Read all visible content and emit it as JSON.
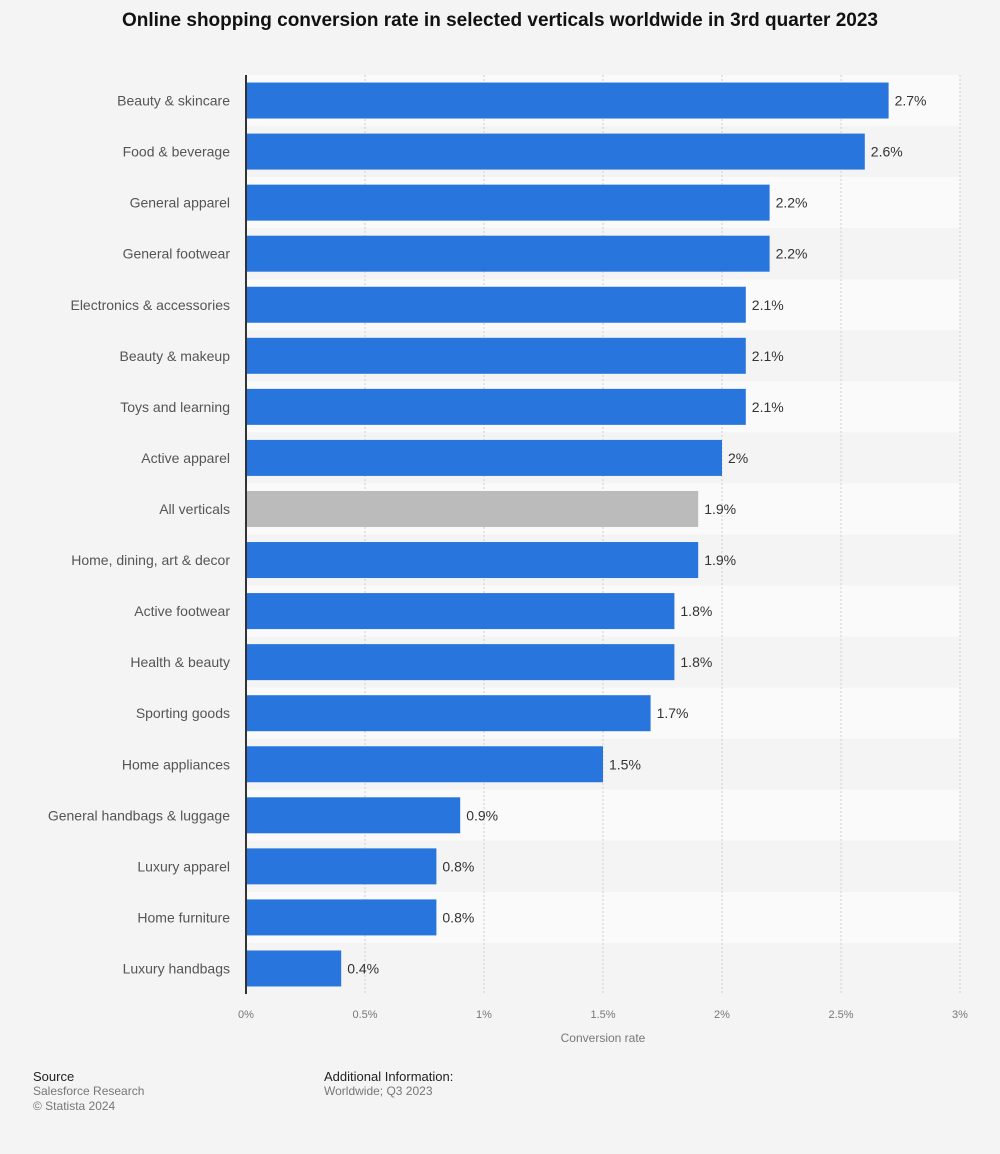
{
  "chart_data": {
    "type": "bar",
    "orientation": "horizontal",
    "title": "Online shopping conversion rate in selected verticals worldwide in 3rd quarter 2023",
    "xlabel": "Conversion rate",
    "ylabel": "",
    "xlim": [
      0,
      3
    ],
    "xticks": [
      0,
      0.5,
      1,
      1.5,
      2,
      2.5,
      3
    ],
    "xtick_labels": [
      "0%",
      "0.5%",
      "1%",
      "1.5%",
      "2%",
      "2.5%",
      "3%"
    ],
    "grid": true,
    "categories": [
      "Beauty & skincare",
      "Food & beverage",
      "General apparel",
      "General footwear",
      "Electronics & accessories",
      "Beauty & makeup",
      "Toys and learning",
      "Active apparel",
      "All verticals",
      "Home, dining, art & decor",
      "Active footwear",
      "Health & beauty",
      "Sporting goods",
      "Home appliances",
      "General handbags & luggage",
      "Luxury apparel",
      "Home furniture",
      "Luxury handbags"
    ],
    "values": [
      2.7,
      2.6,
      2.2,
      2.2,
      2.1,
      2.1,
      2.1,
      2,
      1.9,
      1.9,
      1.8,
      1.8,
      1.7,
      1.5,
      0.9,
      0.8,
      0.8,
      0.4
    ],
    "data_labels": [
      "2.7%",
      "2.6%",
      "2.2%",
      "2.2%",
      "2.1%",
      "2.1%",
      "2.1%",
      "2%",
      "1.9%",
      "1.9%",
      "1.8%",
      "1.8%",
      "1.7%",
      "1.5%",
      "0.9%",
      "0.8%",
      "0.8%",
      "0.4%"
    ],
    "colors": {
      "bar": "#2876dd",
      "highlight": "#bbbbbb"
    },
    "highlighted_category": "All verticals"
  },
  "footer": {
    "source_heading": "Source",
    "source": "Salesforce Research",
    "copyright": "© Statista 2024",
    "info_heading": "Additional Information:",
    "info": "Worldwide; Q3 2023"
  }
}
